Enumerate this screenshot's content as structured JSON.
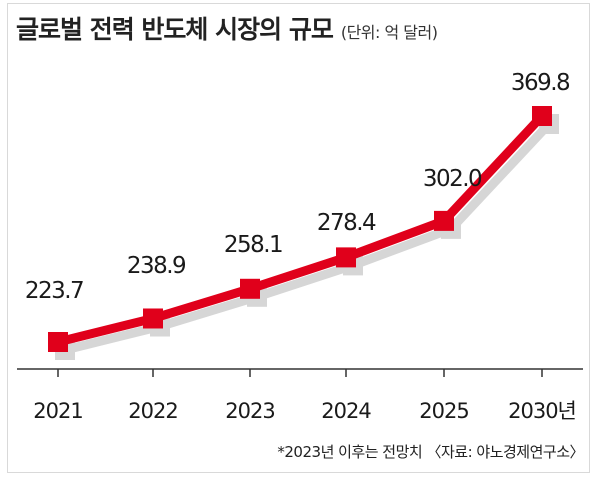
{
  "title": "글로벌 전력 반도체 시장의 규모",
  "unit": "(단위: 억 달러)",
  "footnote": "*2023년 이후는 전망치 〈자료: 야노경제연구소〉",
  "colors": {
    "line": "#e0001b",
    "shadow": "#d6d6d6",
    "axis": "#333333"
  },
  "chart_data": {
    "type": "line",
    "categories": [
      "2021",
      "2022",
      "2023",
      "2024",
      "2025",
      "2030년"
    ],
    "values": [
      223.7,
      238.9,
      258.1,
      278.4,
      302.0,
      369.8
    ],
    "value_labels": [
      "223.7",
      "238.9",
      "258.1",
      "278.4",
      "302.0",
      "369.8"
    ],
    "title": "글로벌 전력 반도체 시장의 규모",
    "unit": "(단위: 억 달러)",
    "xlabel": "",
    "ylabel": "",
    "grid": false,
    "legend": "none"
  }
}
